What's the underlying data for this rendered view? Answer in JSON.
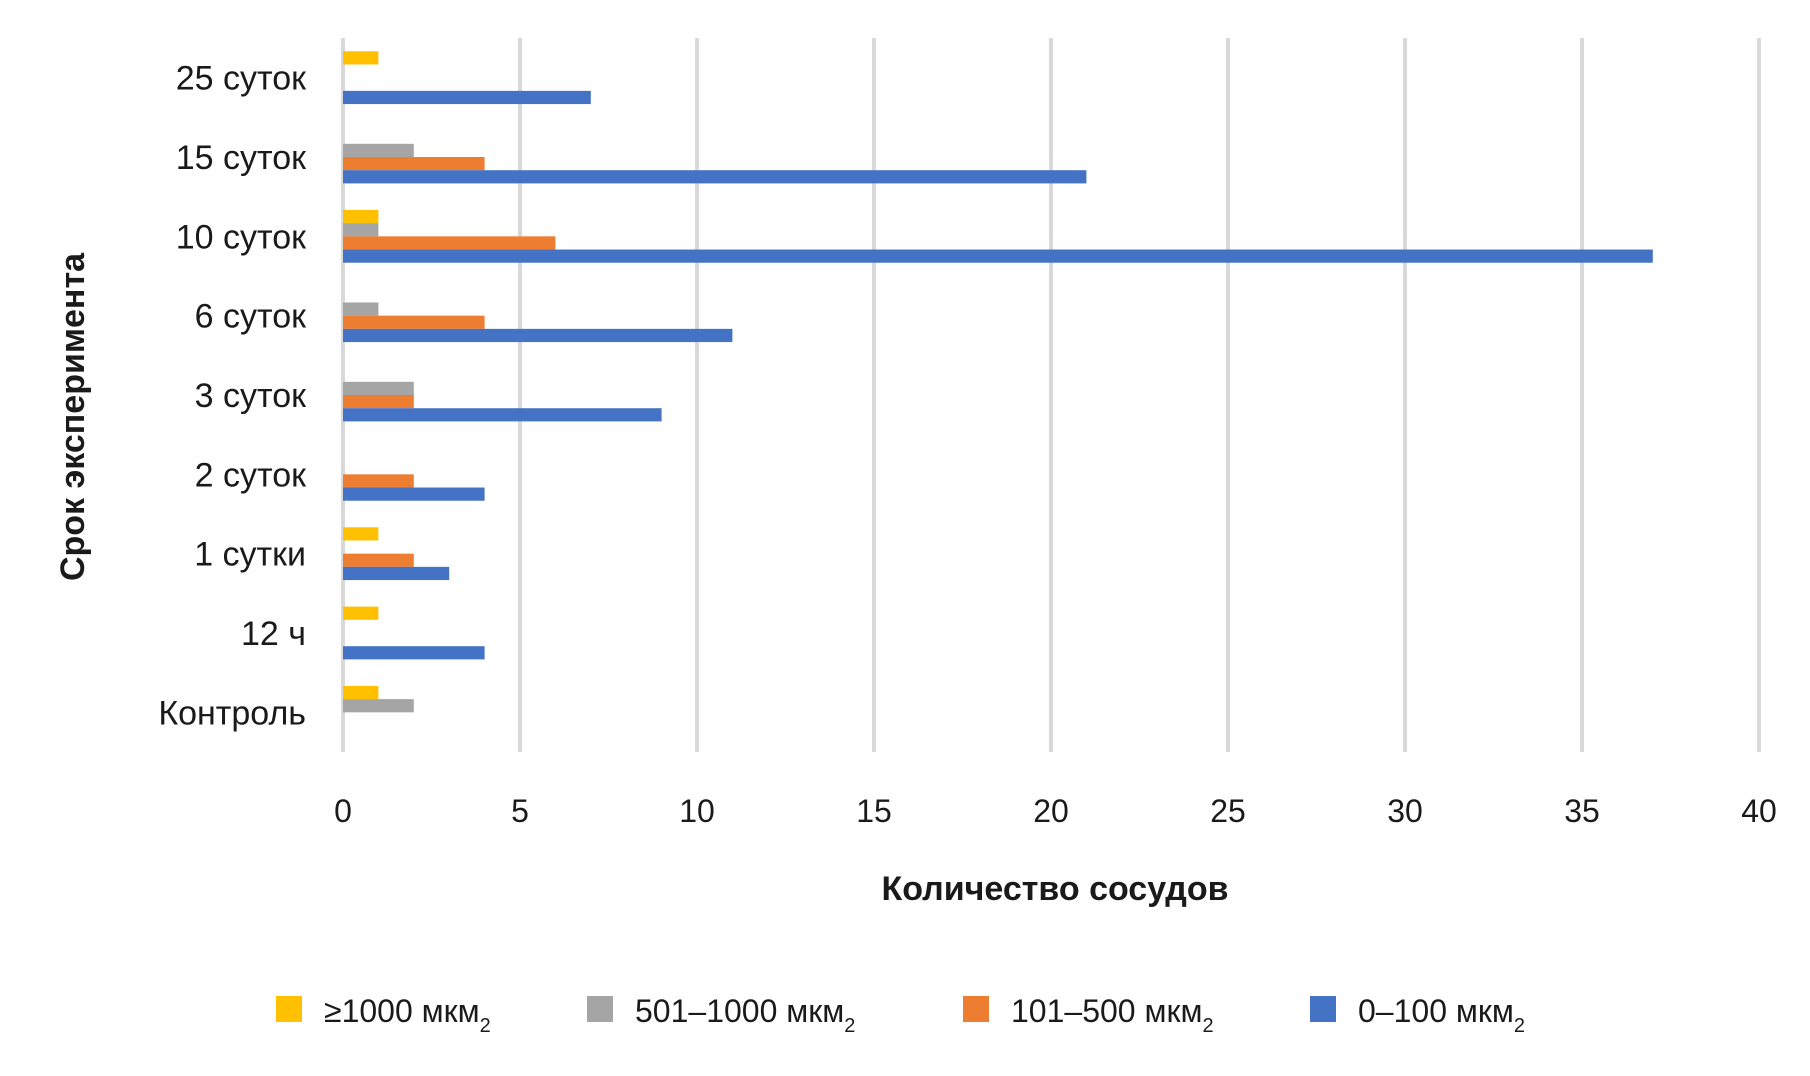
{
  "chart_data": {
    "type": "bar",
    "orientation": "horizontal",
    "xlabel": "Количество сосудов",
    "ylabel": "Срок эксперимента",
    "xlim": [
      0,
      40
    ],
    "xticks": [
      0,
      5,
      10,
      15,
      20,
      25,
      30,
      35,
      40
    ],
    "grid": "vertical",
    "legend_position": "bottom",
    "categories": [
      "Контроль",
      "12 ч",
      "1 сутки",
      "2 суток",
      "3 суток",
      "6 суток",
      "10 суток",
      "15 суток",
      "25 суток"
    ],
    "series": [
      {
        "name": "≥1000 мкм",
        "name_sub": "2",
        "color": "#FFC000",
        "values": [
          1,
          1,
          1,
          0,
          0,
          0,
          1,
          0,
          1
        ]
      },
      {
        "name": "501–1000 мкм",
        "name_sub": "2",
        "color": "#A5A5A5",
        "values": [
          2,
          0,
          0,
          0,
          2,
          1,
          1,
          2,
          0
        ]
      },
      {
        "name": "101–500 мкм",
        "name_sub": "2",
        "color": "#ED7D31",
        "values": [
          0,
          0,
          2,
          2,
          2,
          4,
          6,
          4,
          0
        ]
      },
      {
        "name": "0–100 мкм",
        "name_sub": "2",
        "color": "#4472C4",
        "values": [
          0,
          4,
          3,
          4,
          9,
          11,
          37,
          21,
          7
        ]
      }
    ]
  }
}
